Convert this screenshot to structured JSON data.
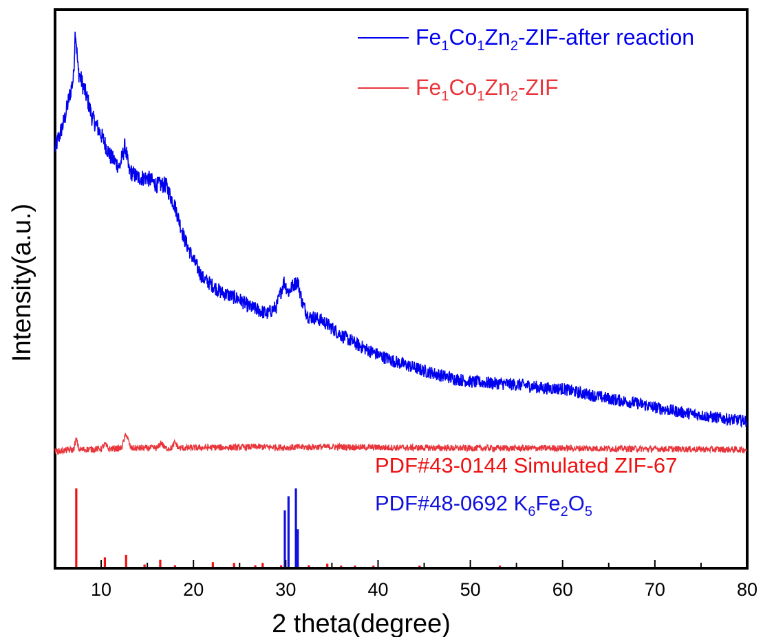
{
  "chart_data": {
    "type": "line",
    "title": "",
    "xlabel": "2 theta(degree)",
    "ylabel": "Intensity(a.u.)",
    "xlim": [
      5,
      80
    ],
    "x_ticks": [
      "10",
      "20",
      "30",
      "40",
      "50",
      "60",
      "70",
      "80"
    ],
    "y_ticks": "none",
    "grid": false,
    "legend_position": "top-right",
    "series": [
      {
        "name": "Fe1Co1Zn2-ZIF-after reaction",
        "label_parts": [
          [
            "Fe",
            ""
          ],
          [
            "1",
            "sub"
          ],
          [
            "Co",
            ""
          ],
          [
            "1",
            "sub"
          ],
          [
            "Zn",
            ""
          ],
          [
            "2",
            "sub"
          ],
          [
            "-ZIF-after reaction",
            ""
          ]
        ],
        "color": "#0000ee",
        "x": [
          5.0,
          6.0,
          7.0,
          7.2,
          7.5,
          8.0,
          8.5,
          9.0,
          10.0,
          11.0,
          12.0,
          12.6,
          13.0,
          14.0,
          15.0,
          16.0,
          17.0,
          18.0,
          19.0,
          20.0,
          21.0,
          22.0,
          23.0,
          24.0,
          25.0,
          26.0,
          27.0,
          28.0,
          29.0,
          29.8,
          30.3,
          30.8,
          31.3,
          31.8,
          32.5,
          33.0,
          34.0,
          35.0,
          36.0,
          38.0,
          40.0,
          42.0,
          45.0,
          48.0,
          50.0,
          53.0,
          56.0,
          58.0,
          60.0,
          62.0,
          64.0,
          66.0,
          68.0,
          70.0,
          73.0,
          76.0,
          78.0,
          80.0
        ],
        "y": [
          6.6,
          7.4,
          8.6,
          10.0,
          8.8,
          8.4,
          8.0,
          7.5,
          7.0,
          6.4,
          6.1,
          6.7,
          6.0,
          5.8,
          5.8,
          5.6,
          5.6,
          5.0,
          4.1,
          3.5,
          3.0,
          2.8,
          2.6,
          2.5,
          2.4,
          2.2,
          2.1,
          2.0,
          2.2,
          2.9,
          2.6,
          2.8,
          2.9,
          2.3,
          1.9,
          1.9,
          1.8,
          1.6,
          1.4,
          1.1,
          0.85,
          0.65,
          0.4,
          0.2,
          0.1,
          0.05,
          0.0,
          -0.08,
          -0.1,
          -0.22,
          -0.32,
          -0.42,
          -0.5,
          -0.62,
          -0.76,
          -0.88,
          -0.95,
          -1.0
        ]
      },
      {
        "name": "Fe1Co1Zn2-ZIF",
        "label_parts": [
          [
            "Fe",
            ""
          ],
          [
            "1",
            "sub"
          ],
          [
            "Co",
            ""
          ],
          [
            "1",
            "sub"
          ],
          [
            "Zn",
            ""
          ],
          [
            "2",
            "sub"
          ],
          [
            "-ZIF",
            ""
          ]
        ],
        "color": "#e8353b",
        "x": [
          5.0,
          7.0,
          7.3,
          7.6,
          10.0,
          10.4,
          10.8,
          12.2,
          12.7,
          13.2,
          16.1,
          16.5,
          16.9,
          17.6,
          18.0,
          18.4,
          22.0,
          24.5,
          26.8,
          30.0,
          34.5,
          40.0,
          50.0,
          60.0,
          70.0,
          80.0
        ],
        "y": [
          -1.85,
          -1.8,
          -1.5,
          -1.8,
          -1.78,
          -1.65,
          -1.78,
          -1.76,
          -1.35,
          -1.76,
          -1.76,
          -1.6,
          -1.76,
          -1.76,
          -1.6,
          -1.76,
          -1.74,
          -1.74,
          -1.72,
          -1.74,
          -1.72,
          -1.74,
          -1.76,
          -1.76,
          -1.78,
          -1.8
        ]
      }
    ],
    "reference_patterns": [
      {
        "name": "PDF#43-0144 Simulated ZIF-67",
        "label_parts": [
          [
            "PDF#43-0144 Simulated ZIF-67",
            ""
          ]
        ],
        "color": "#ee1111",
        "relative_intensity_max": 1.0,
        "peaks": [
          [
            7.3,
            1.0
          ],
          [
            10.4,
            0.12
          ],
          [
            12.7,
            0.15
          ],
          [
            14.7,
            0.03
          ],
          [
            16.4,
            0.09
          ],
          [
            18.0,
            0.02
          ],
          [
            22.1,
            0.06
          ],
          [
            24.4,
            0.05
          ],
          [
            26.7,
            0.02
          ],
          [
            27.5,
            0.05
          ],
          [
            29.5,
            0.02
          ],
          [
            32.5,
            0.02
          ],
          [
            34.5,
            0.04
          ],
          [
            36.0,
            0.015
          ],
          [
            37.5,
            0.015
          ],
          [
            39.5,
            0.015
          ],
          [
            44.5,
            0.015
          ],
          [
            53.2,
            0.015
          ]
        ]
      },
      {
        "name": "PDF#48-0692 K6Fe2O5",
        "label_parts": [
          [
            "PDF#48-0692 K",
            ""
          ],
          [
            "6",
            "sub"
          ],
          [
            "Fe",
            ""
          ],
          [
            "2",
            "sub"
          ],
          [
            "O",
            ""
          ],
          [
            "5",
            "sub"
          ]
        ],
        "color": "#1111dd",
        "peaks": [
          [
            29.9,
            0.72
          ],
          [
            30.3,
            0.9
          ],
          [
            31.1,
            1.0
          ],
          [
            31.3,
            0.48
          ]
        ]
      }
    ]
  }
}
